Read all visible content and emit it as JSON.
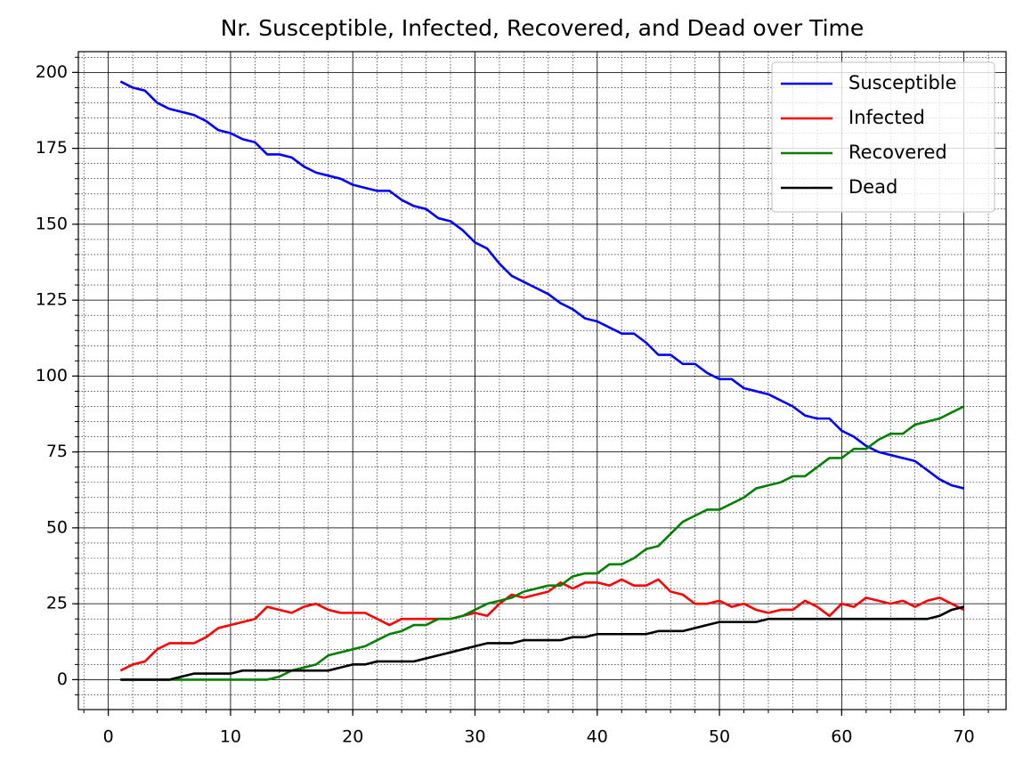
{
  "chart_data": {
    "type": "line",
    "title": "Nr. Susceptible, Infected, Recovered, and Dead over Time",
    "x": [
      1,
      2,
      3,
      4,
      5,
      6,
      7,
      8,
      9,
      10,
      11,
      12,
      13,
      14,
      15,
      16,
      17,
      18,
      19,
      20,
      21,
      22,
      23,
      24,
      25,
      26,
      27,
      28,
      29,
      30,
      31,
      32,
      33,
      34,
      35,
      36,
      37,
      38,
      39,
      40,
      41,
      42,
      43,
      44,
      45,
      46,
      47,
      48,
      49,
      50,
      51,
      52,
      53,
      54,
      55,
      56,
      57,
      58,
      59,
      60,
      61,
      62,
      63,
      64,
      65,
      66,
      67,
      68,
      69,
      70
    ],
    "series": [
      {
        "name": "Susceptible",
        "color": "#0000ff",
        "values": [
          197,
          195,
          194,
          190,
          188,
          187,
          186,
          184,
          181,
          180,
          178,
          177,
          173,
          173,
          172,
          169,
          167,
          166,
          165,
          163,
          162,
          161,
          161,
          158,
          156,
          155,
          152,
          151,
          148,
          144,
          142,
          137,
          133,
          131,
          129,
          127,
          124,
          122,
          119,
          118,
          116,
          114,
          114,
          111,
          107,
          107,
          104,
          104,
          101,
          99,
          99,
          96,
          95,
          94,
          92,
          90,
          87,
          86,
          86,
          82,
          80,
          77,
          75,
          74,
          73,
          72,
          69,
          66,
          64,
          63
        ]
      },
      {
        "name": "Infected",
        "color": "#ff0000",
        "values": [
          3,
          5,
          6,
          10,
          12,
          12,
          12,
          14,
          17,
          18,
          19,
          20,
          24,
          23,
          22,
          24,
          25,
          23,
          22,
          22,
          22,
          20,
          18,
          20,
          20,
          20,
          20,
          20,
          21,
          22,
          21,
          25,
          28,
          27,
          28,
          29,
          32,
          30,
          32,
          32,
          31,
          33,
          31,
          31,
          33,
          29,
          28,
          25,
          25,
          26,
          24,
          25,
          23,
          22,
          23,
          23,
          26,
          24,
          21,
          25,
          24,
          27,
          26,
          25,
          26,
          24,
          26,
          27,
          25,
          23
        ]
      },
      {
        "name": "Recovered",
        "color": "#008000",
        "values": [
          0,
          0,
          0,
          0,
          0,
          0,
          0,
          0,
          0,
          0,
          0,
          0,
          0,
          1,
          3,
          4,
          5,
          8,
          9,
          10,
          11,
          13,
          15,
          16,
          18,
          18,
          20,
          20,
          21,
          23,
          25,
          26,
          27,
          29,
          30,
          31,
          31,
          34,
          35,
          35,
          38,
          38,
          40,
          43,
          44,
          48,
          52,
          54,
          56,
          56,
          58,
          60,
          63,
          64,
          65,
          67,
          67,
          70,
          73,
          73,
          76,
          76,
          79,
          81,
          81,
          84,
          85,
          86,
          88,
          90
        ]
      },
      {
        "name": "Dead",
        "color": "#000000",
        "values": [
          0,
          0,
          0,
          0,
          0,
          1,
          2,
          2,
          2,
          2,
          3,
          3,
          3,
          3,
          3,
          3,
          3,
          3,
          4,
          5,
          5,
          6,
          6,
          6,
          6,
          7,
          8,
          9,
          10,
          11,
          12,
          12,
          12,
          13,
          13,
          13,
          13,
          14,
          14,
          15,
          15,
          15,
          15,
          15,
          16,
          16,
          16,
          17,
          18,
          19,
          19,
          19,
          19,
          20,
          20,
          20,
          20,
          20,
          20,
          20,
          20,
          20,
          20,
          20,
          20,
          20,
          20,
          21,
          23,
          24
        ]
      }
    ],
    "xlim": [
      -2.45,
      73.45
    ],
    "ylim": [
      -9.85,
      206.85
    ],
    "xticks": [
      0,
      10,
      20,
      30,
      40,
      50,
      60,
      70
    ],
    "yticks": [
      0,
      25,
      50,
      75,
      100,
      125,
      150,
      175,
      200
    ],
    "grid": true,
    "minor_grid": true,
    "legend": "upper right"
  }
}
